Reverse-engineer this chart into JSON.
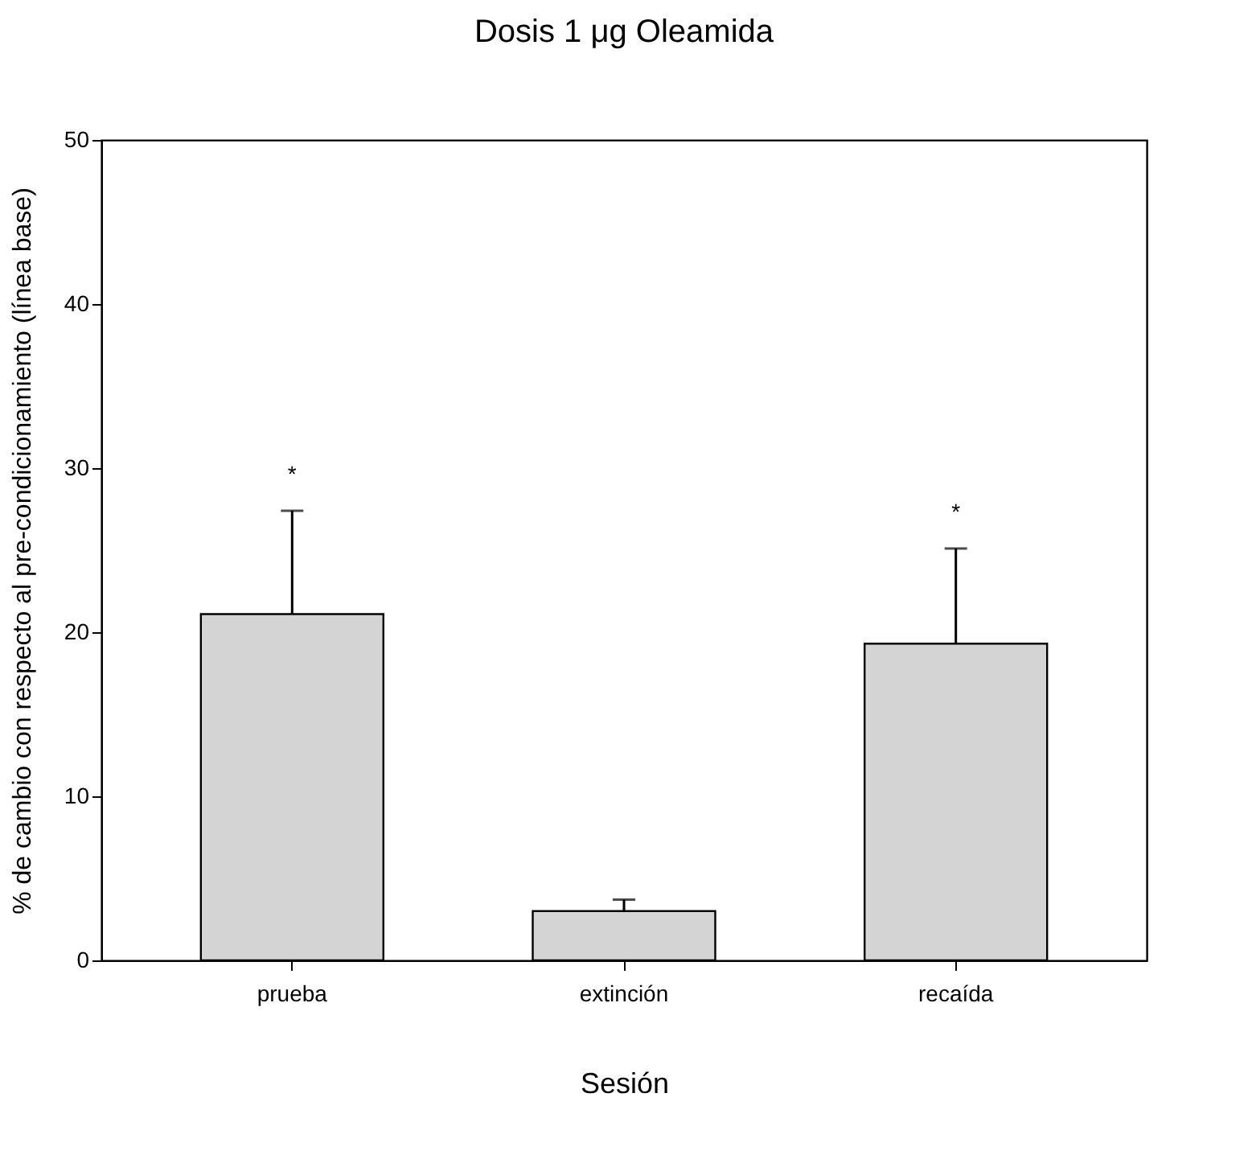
{
  "chart_data": {
    "type": "bar",
    "title": "Dosis 1 μg Oleamida",
    "xlabel": "Sesión",
    "ylabel": "% de cambio con respecto al pre-condicionamiento (línea base)",
    "categories": [
      "prueba",
      "extinción",
      "recaída"
    ],
    "values": [
      21.1,
      3.0,
      19.3
    ],
    "color": "#d4d4d4",
    "errors": [
      [
        21.1,
        27.4
      ],
      [
        3.0,
        3.7
      ],
      [
        19.3,
        25.1
      ]
    ],
    "ylim": [
      0,
      50
    ],
    "yticks": [
      0,
      10,
      20,
      30,
      40,
      50
    ],
    "grid": false,
    "annotations": [
      "*",
      "*"
    ]
  }
}
